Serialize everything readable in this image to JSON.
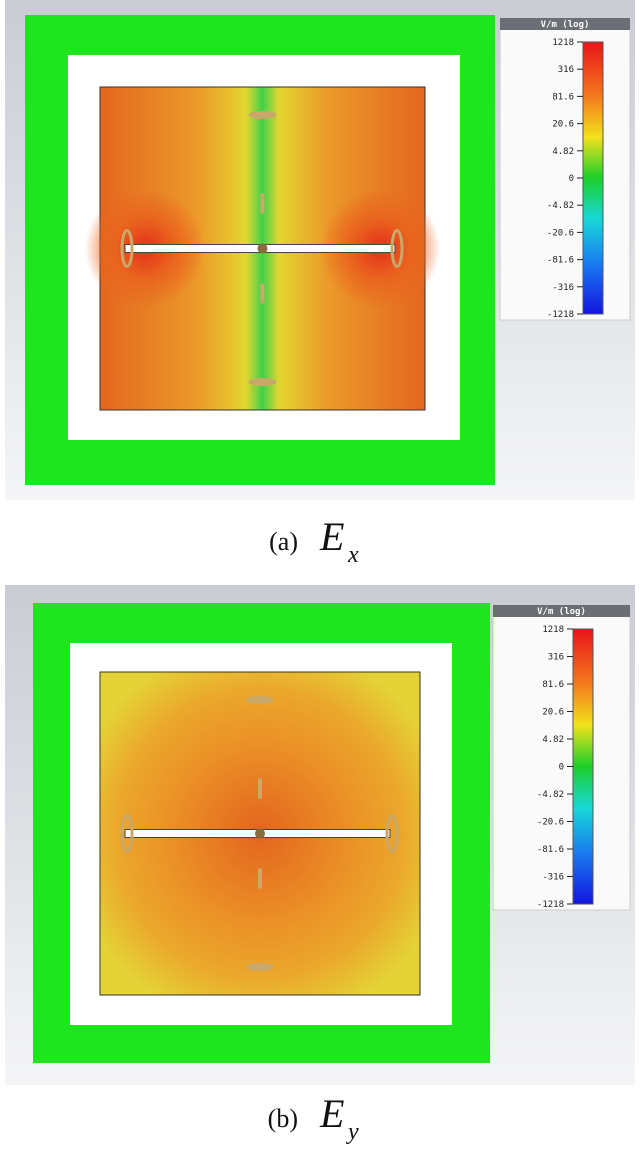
{
  "panels": [
    {
      "legend": {
        "title": "V/m (log)",
        "ticks": [
          "1218",
          "316",
          "81.6",
          "20.6",
          "4.82",
          "0",
          "-4.82",
          "-20.6",
          "-81.6",
          "-316",
          "-1218"
        ]
      },
      "caption": {
        "label": "(a)",
        "symbol": "E",
        "subscript": "x"
      }
    },
    {
      "legend": {
        "title": "V/m (log)",
        "ticks": [
          "1218",
          "316",
          "81.6",
          "20.6",
          "4.82",
          "0",
          "-4.82",
          "-20.6",
          "-81.6",
          "-316",
          "-1218"
        ]
      },
      "caption": {
        "label": "(b)",
        "symbol": "E",
        "subscript": "y"
      }
    }
  ]
}
